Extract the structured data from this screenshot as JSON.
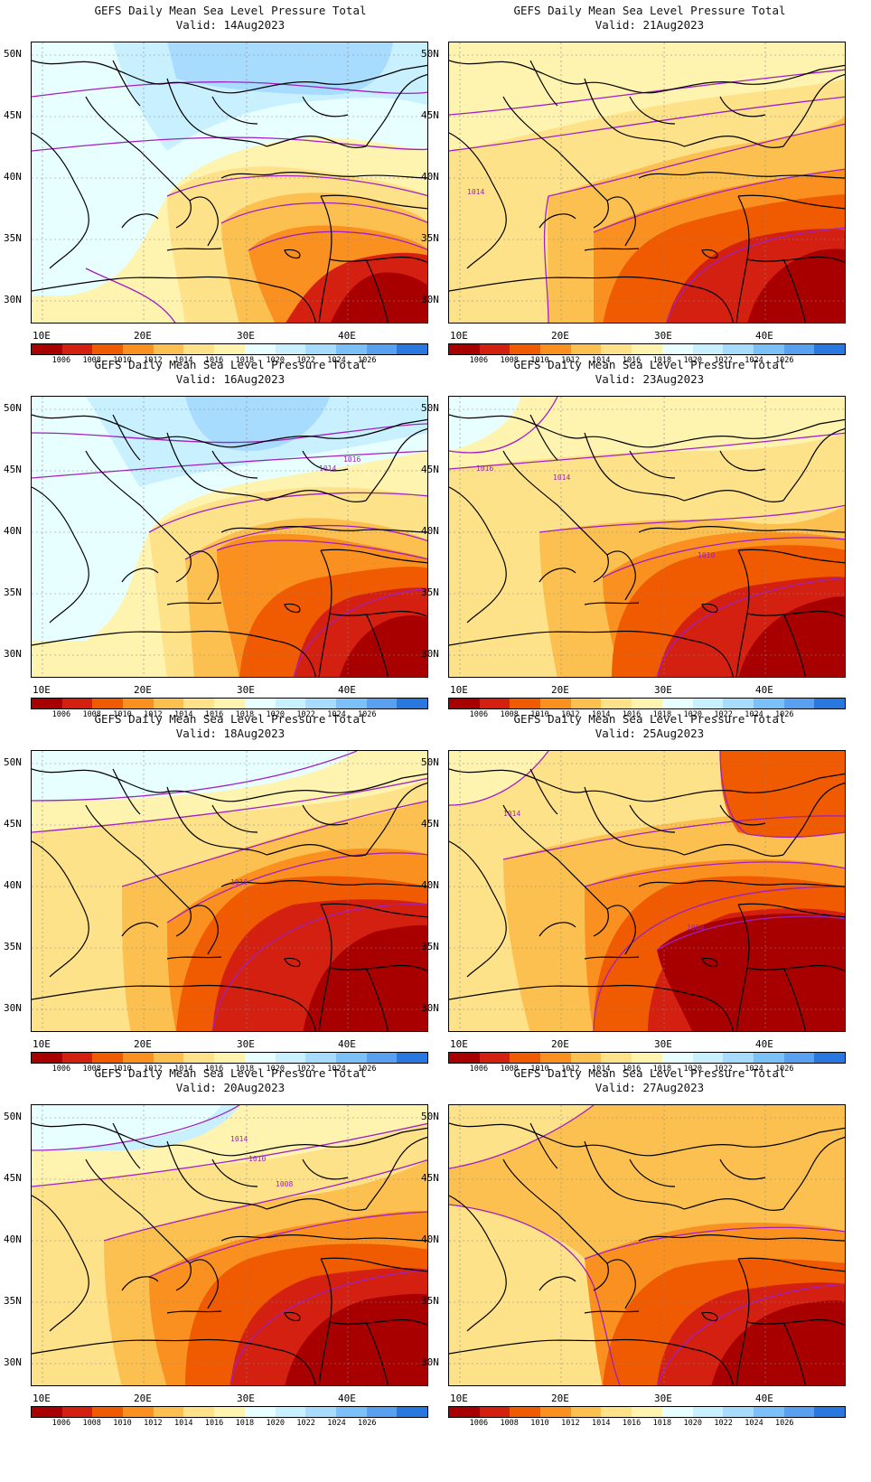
{
  "figure_title": "GEFS Daily Mean Sea Level Pressure Total",
  "valid_prefix": "Valid:",
  "lat_labels": [
    "50N",
    "45N",
    "40N",
    "35N",
    "30N"
  ],
  "lon_labels": [
    "10E",
    "20E",
    "30E",
    "40E"
  ],
  "colorbar": {
    "labels": [
      "1006",
      "1008",
      "1010",
      "1012",
      "1014",
      "1016",
      "1018",
      "1020",
      "1022",
      "1024",
      "1026"
    ],
    "colors": [
      "#a80000",
      "#d42010",
      "#f05a00",
      "#fa9020",
      "#fcc050",
      "#fde28a",
      "#fff3b0",
      "#e8ffff",
      "#c8f0ff",
      "#a8dcff",
      "#7cc0f8",
      "#5aa0f0",
      "#2878e0"
    ]
  },
  "contour_color": "#a020c0",
  "panels": [
    {
      "valid": "Valid: 14Aug2023",
      "col": 0,
      "row": 0,
      "pressure_labels": []
    },
    {
      "valid": "Valid: 21Aug2023",
      "col": 1,
      "row": 0,
      "pressure_labels": [
        "1014"
      ]
    },
    {
      "valid": "Valid: 16Aug2023",
      "col": 0,
      "row": 1,
      "pressure_labels": [
        "1016",
        "1014"
      ]
    },
    {
      "valid": "Valid: 23Aug2023",
      "col": 1,
      "row": 1,
      "pressure_labels": [
        "1016",
        "1014",
        "1010"
      ]
    },
    {
      "valid": "Valid: 18Aug2023",
      "col": 0,
      "row": 2,
      "pressure_labels": [
        "1010"
      ]
    },
    {
      "valid": "Valid: 25Aug2023",
      "col": 1,
      "row": 2,
      "pressure_labels": [
        "1014",
        "1008"
      ]
    },
    {
      "valid": "Valid: 20Aug2023",
      "col": 0,
      "row": 3,
      "pressure_labels": [
        "1014",
        "1010",
        "1008"
      ]
    },
    {
      "valid": "Valid: 27Aug2023",
      "col": 1,
      "row": 3,
      "pressure_labels": []
    }
  ]
}
